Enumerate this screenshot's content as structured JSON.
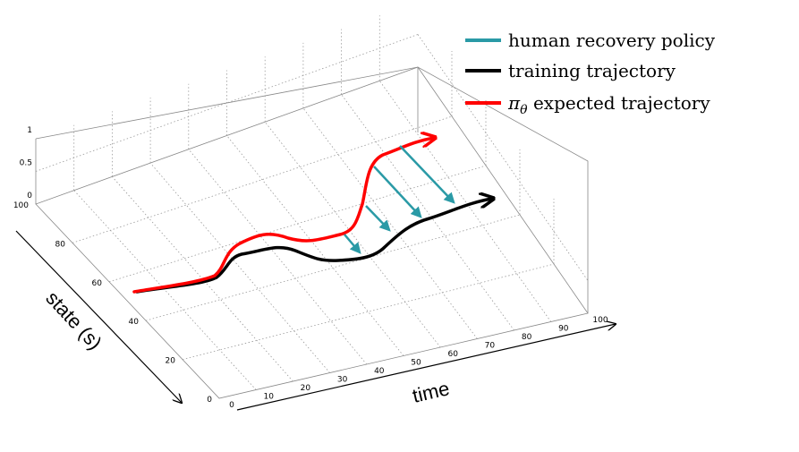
{
  "legend": {
    "items": [
      {
        "prefix": "",
        "text": "human recovery policy",
        "color": "#2a9aa6"
      },
      {
        "prefix": "",
        "text": "training trajectory",
        "color": "#000000"
      },
      {
        "prefix": "π",
        "sub": "θ",
        "text": " expected trajectory",
        "color": "#ff0000"
      }
    ]
  },
  "axes": {
    "x_title": "time",
    "y_title": "state (s)",
    "x_ticks": [
      "0",
      "10",
      "20",
      "30",
      "40",
      "50",
      "60",
      "70",
      "80",
      "90",
      "100"
    ],
    "y_ticks": [
      "0",
      "20",
      "40",
      "60",
      "80",
      "100"
    ],
    "z_ticks": [
      "0",
      "0.5",
      "1"
    ]
  },
  "colors": {
    "policy": "#2a9aa6",
    "training": "#000000",
    "expected": "#ff0000"
  }
}
